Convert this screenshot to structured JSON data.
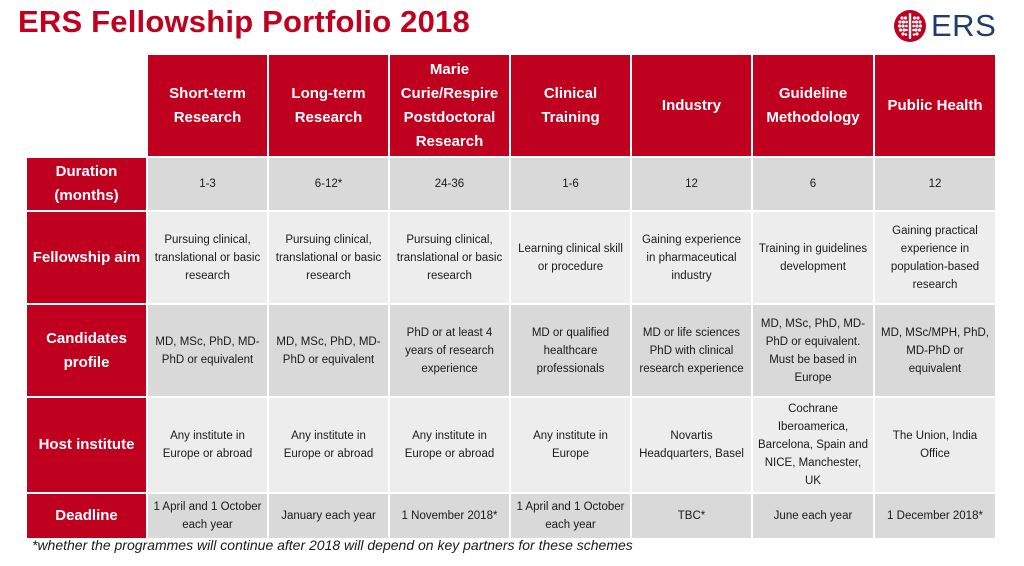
{
  "title": "ERS Fellowship Portfolio 2018",
  "logo": {
    "text": "ERS",
    "color": "#c0001f"
  },
  "columns": [
    "Short-term Research",
    "Long-term Research",
    "Marie Curie/Respire Postdoctoral Research",
    "Clinical Training",
    "Industry",
    "Guideline Methodology",
    "Public Health"
  ],
  "rows": [
    {
      "label": "Duration (months)",
      "cells": [
        "1-3",
        "6-12*",
        "24-36",
        "1-6",
        "12",
        "6",
        "12"
      ]
    },
    {
      "label": "Fellowship aim",
      "cells": [
        "Pursuing clinical, translational or basic research",
        "Pursuing clinical, translational or basic research",
        "Pursuing clinical, translational or basic research",
        "Learning clinical skill or procedure",
        "Gaining experience in pharmaceutical industry",
        "Training in guidelines development",
        "Gaining practical experience in population-based research"
      ]
    },
    {
      "label": "Candidates profile",
      "cells": [
        "MD, MSc, PhD, MD-PhD or equivalent",
        "MD, MSc, PhD, MD-PhD or equivalent",
        "PhD or at least 4 years of research experience",
        "MD or qualified healthcare professionals",
        "MD or life sciences PhD with clinical research experience",
        "MD, MSc, PhD, MD-PhD or equivalent. Must be based in Europe",
        "MD, MSc/MPH, PhD, MD-PhD or equivalent"
      ]
    },
    {
      "label": "Host institute",
      "cells": [
        "Any institute in Europe or abroad",
        "Any institute in Europe or abroad",
        "Any institute in Europe or abroad",
        "Any institute in Europe",
        "Novartis Headquarters, Basel",
        "Cochrane Iberoamerica, Barcelona, Spain and NICE, Manchester, UK",
        "The Union, India Office"
      ]
    },
    {
      "label": "Deadline",
      "cells": [
        "1 April and 1 October each year",
        "January each year",
        "1 November 2018*",
        "1 April and 1 October each year",
        "TBC*",
        "June each year",
        "1 December 2018*"
      ]
    }
  ],
  "footnote": "*whether the programmes will continue after 2018 will depend on key partners for these schemes"
}
